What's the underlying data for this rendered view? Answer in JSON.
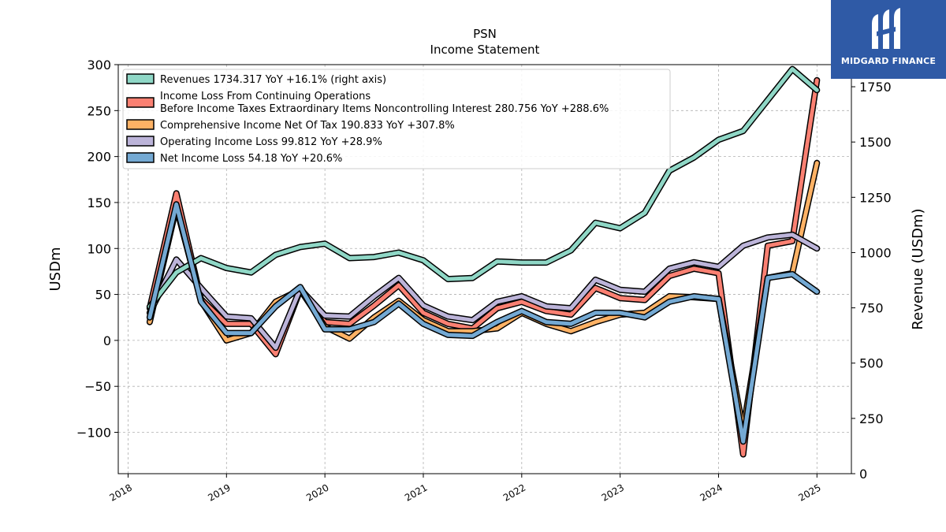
{
  "logo": {
    "text": "MIDGARD FINANCE",
    "color": "#2f5aa6"
  },
  "chart_data": {
    "type": "line",
    "title": "PSN",
    "subtitle": "Income Statement",
    "ylabel": "USDm",
    "ylabel_right": "Revenue (USDm)",
    "ylim": [
      -145,
      300
    ],
    "ylim_right": [
      0,
      1850
    ],
    "xlim": [
      2017.9,
      2025.35
    ],
    "yticks": [
      -100,
      -50,
      0,
      50,
      100,
      150,
      200,
      250,
      300
    ],
    "yticks_right": [
      0,
      250,
      500,
      750,
      1000,
      1250,
      1500,
      1750
    ],
    "xticks": [
      2018,
      2019,
      2020,
      2021,
      2022,
      2023,
      2024,
      2025
    ],
    "grid": true,
    "legend_position": "top-left",
    "x": [
      2018.22,
      2018.49,
      2018.74,
      2019.0,
      2019.25,
      2019.5,
      2019.75,
      2020.0,
      2020.25,
      2020.5,
      2020.75,
      2021.0,
      2021.25,
      2021.5,
      2021.75,
      2022.0,
      2022.25,
      2022.5,
      2022.75,
      2023.0,
      2023.25,
      2023.5,
      2023.75,
      2024.0,
      2024.25,
      2024.5,
      2024.75,
      2025.0
    ],
    "series": [
      {
        "name": "Income Loss From Continuing Operations\nBefore Income Taxes Extraordinary Items Noncontrolling Interest  280.756 YoY +288.6%",
        "color": "#fa8072",
        "axis": "left",
        "values": [
          35,
          160,
          45,
          18,
          18,
          -15,
          55,
          20,
          18,
          38,
          60,
          30,
          18,
          13,
          35,
          42,
          32,
          28,
          57,
          46,
          44,
          70,
          78,
          73,
          -124,
          103,
          108,
          283
        ]
      },
      {
        "name": "Comprehensive Income Net Of Tax  190.833 YoY +307.8%",
        "color": "#ffb265",
        "axis": "left",
        "values": [
          20,
          145,
          43,
          0,
          8,
          42,
          55,
          15,
          2,
          25,
          43,
          22,
          10,
          10,
          13,
          30,
          18,
          10,
          20,
          28,
          30,
          48,
          47,
          45,
          -97,
          68,
          73,
          193
        ]
      },
      {
        "name": "Operating Income Loss  99.812 YoY +28.9%",
        "color": "#bcb4d9",
        "axis": "left",
        "values": [
          30,
          88,
          57,
          26,
          24,
          -8,
          56,
          27,
          26,
          48,
          68,
          38,
          26,
          22,
          42,
          48,
          37,
          35,
          66,
          55,
          53,
          78,
          85,
          80,
          103,
          112,
          115,
          100
        ]
      },
      {
        "name": "Revenues  1734.317 YoY +16.1% (right axis)",
        "color": "#8fd7c6",
        "axis": "right",
        "values": [
          755,
          910,
          975,
          930,
          910,
          990,
          1025,
          1040,
          975,
          980,
          1000,
          965,
          880,
          885,
          960,
          955,
          955,
          1010,
          1135,
          1110,
          1180,
          1370,
          1430,
          1510,
          1550,
          1690,
          1830,
          1735
        ]
      },
      {
        "name": "Net Income Loss  54.18 YoY +20.6%",
        "color": "#74a9d3",
        "axis": "left",
        "values": [
          25,
          148,
          42,
          8,
          8,
          37,
          58,
          12,
          12,
          20,
          40,
          18,
          6,
          5,
          20,
          32,
          20,
          18,
          30,
          30,
          25,
          42,
          48,
          45,
          -110,
          68,
          72,
          53
        ]
      }
    ],
    "legend": [
      {
        "label": "Revenues  1734.317 YoY +16.1% (right axis)",
        "color": "#8fd7c6"
      },
      {
        "label": "Income Loss From Continuing Operations\nBefore Income Taxes Extraordinary Items Noncontrolling Interest  280.756 YoY +288.6%",
        "color": "#fa8072"
      },
      {
        "label": "Comprehensive Income Net Of Tax  190.833 YoY +307.8%",
        "color": "#ffb265"
      },
      {
        "label": "Operating Income Loss  99.812 YoY +28.9%",
        "color": "#bcb4d9"
      },
      {
        "label": "Net Income Loss  54.18 YoY +20.6%",
        "color": "#74a9d3"
      }
    ]
  }
}
